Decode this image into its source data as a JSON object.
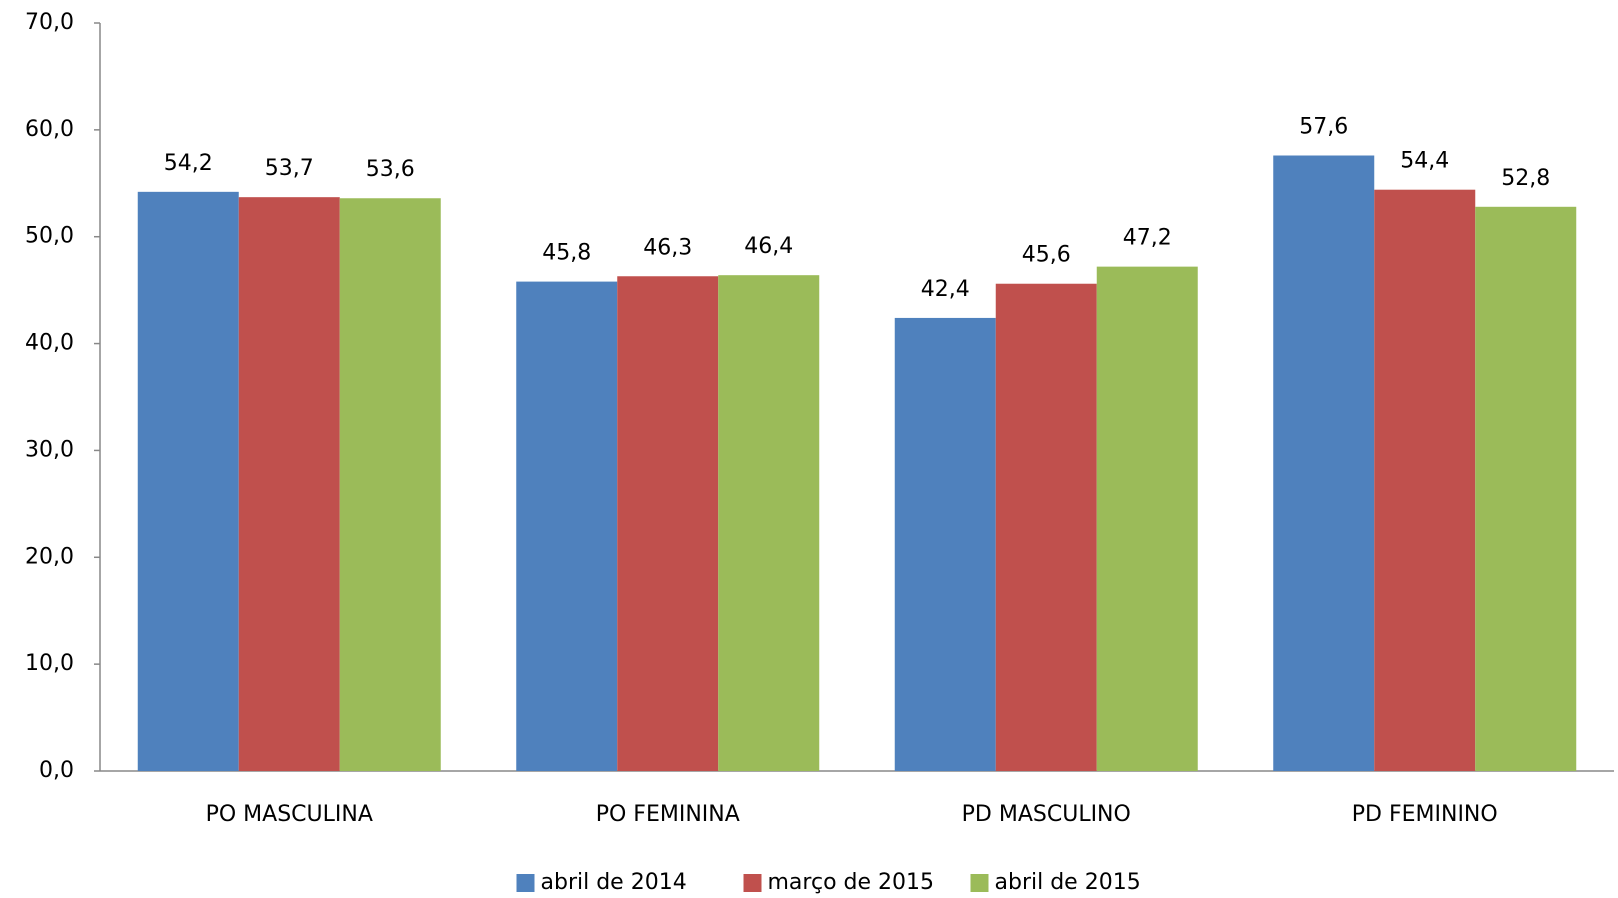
{
  "chart_data": {
    "type": "bar",
    "categories": [
      "PO MASCULINA",
      "PO FEMININA",
      "PD MASCULINO",
      "PD FEMININO"
    ],
    "series": [
      {
        "name": "abril de 2014",
        "color": "#4f81bd",
        "values": [
          54.2,
          45.8,
          42.4,
          57.6
        ],
        "value_labels": [
          "54,2",
          "45,8",
          "42,4",
          "57,6"
        ]
      },
      {
        "name": "março de 2015",
        "color": "#c0504d",
        "values": [
          53.7,
          46.3,
          45.6,
          54.4
        ],
        "value_labels": [
          "53,7",
          "46,3",
          "45,6",
          "54,4"
        ]
      },
      {
        "name": "abril de 2015",
        "color": "#9bbb59",
        "values": [
          53.6,
          46.4,
          47.2,
          52.8
        ],
        "value_labels": [
          "53,6",
          "46,4",
          "47,2",
          "52,8"
        ]
      }
    ],
    "ylim": [
      0,
      70
    ],
    "yticks": [
      {
        "value": 0,
        "label": "0,0"
      },
      {
        "value": 10,
        "label": "10,0"
      },
      {
        "value": 20,
        "label": "20,0"
      },
      {
        "value": 30,
        "label": "30,0"
      },
      {
        "value": 40,
        "label": "40,0"
      },
      {
        "value": 50,
        "label": "50,0"
      },
      {
        "value": 60,
        "label": "60,0"
      },
      {
        "value": 70,
        "label": "70,0"
      }
    ],
    "grid": false,
    "legend": "bottom"
  }
}
